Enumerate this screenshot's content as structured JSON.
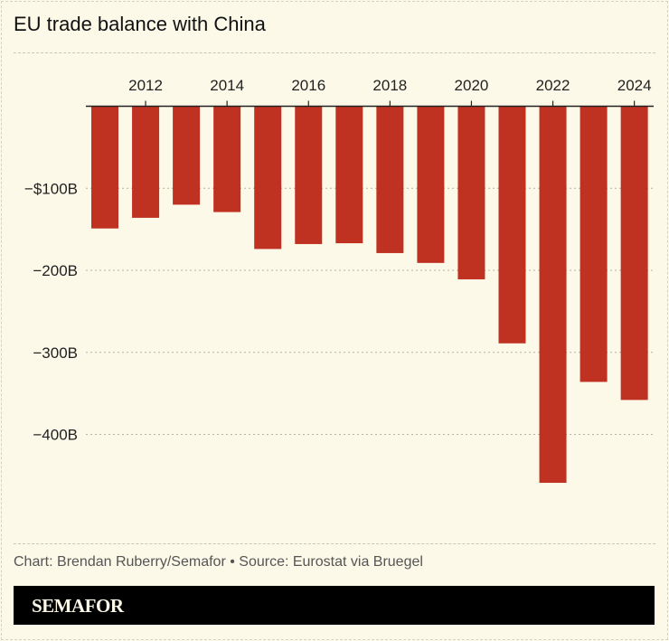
{
  "chart_data": {
    "type": "bar",
    "title": "EU trade balance with China",
    "categories": [
      "2011",
      "2012",
      "2013",
      "2014",
      "2015",
      "2016",
      "2017",
      "2018",
      "2019",
      "2020",
      "2021",
      "2022",
      "2023",
      "2024"
    ],
    "values": [
      -149,
      -136,
      -120,
      -129,
      -174,
      -168,
      -167,
      -179,
      -191,
      -211,
      -289,
      -459,
      -336,
      -358
    ],
    "x_tick_labels": [
      "2012",
      "2014",
      "2016",
      "2018",
      "2020",
      "2022",
      "2024"
    ],
    "y_ticks": [
      -100,
      -200,
      -300,
      -400
    ],
    "y_tick_labels": [
      "−$100B",
      "−200B",
      "−300B",
      "−400B"
    ],
    "ylim": [
      -500,
      0
    ],
    "grid": true,
    "bar_color": "#bf3222",
    "x_axis_position": "top"
  },
  "footer": {
    "source": "Chart: Brendan Ruberry/Semafor • Source: Eurostat via Bruegel",
    "logo": "SEMAFOR"
  },
  "colors": {
    "background": "#fcf9e8",
    "bar": "#bf3222"
  }
}
